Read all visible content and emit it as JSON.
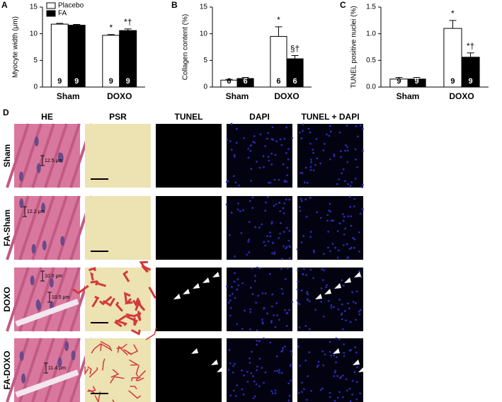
{
  "chart_data": [
    {
      "type": "bar",
      "panel": "A",
      "ylabel": "Myocyte width (μm)",
      "categories": [
        "Sham",
        "DOXO"
      ],
      "ylim": [
        0,
        15
      ],
      "yticks": [
        0,
        5,
        10,
        15
      ],
      "legend": "upper left",
      "series": [
        {
          "name": "Placebo",
          "color": "#ffffff",
          "values": [
            11.8,
            9.7
          ],
          "errors": [
            0.15,
            0.15
          ],
          "n": [
            9,
            9
          ],
          "annotations": [
            null,
            "*"
          ]
        },
        {
          "name": "FA",
          "color": "#000000",
          "values": [
            11.6,
            10.6
          ],
          "errors": [
            0.15,
            0.3
          ],
          "n": [
            9,
            9
          ],
          "annotations": [
            null,
            "*†"
          ]
        }
      ]
    },
    {
      "type": "bar",
      "panel": "B",
      "ylabel": "Collagen content (%)",
      "categories": [
        "Sham",
        "DOXO"
      ],
      "ylim": [
        0,
        15
      ],
      "yticks": [
        0,
        5,
        10,
        15
      ],
      "series": [
        {
          "color": "#ffffff",
          "values": [
            1.3,
            9.5
          ],
          "errors": [
            0.15,
            1.8
          ],
          "n": [
            6,
            6
          ],
          "annotations": [
            null,
            "*"
          ]
        },
        {
          "color": "#000000",
          "values": [
            1.6,
            5.3
          ],
          "errors": [
            0.2,
            0.6
          ],
          "n": [
            6,
            6
          ],
          "annotations": [
            null,
            "§†"
          ]
        }
      ]
    },
    {
      "type": "bar",
      "panel": "C",
      "ylabel": "TUNEL positive nuclei (%)",
      "categories": [
        "Sham",
        "DOXO"
      ],
      "ylim": [
        0,
        1.5
      ],
      "yticks": [
        {
          "value": 0,
          "label": "0.0"
        },
        0.5,
        {
          "value": 1,
          "label": "1.0"
        },
        1.5
      ],
      "series": [
        {
          "color": "#ffffff",
          "values": [
            0.15,
            1.1
          ],
          "errors": [
            0.03,
            0.15
          ],
          "n": [
            9,
            9
          ],
          "annotations": [
            null,
            "*"
          ]
        },
        {
          "color": "#000000",
          "values": [
            0.15,
            0.56
          ],
          "errors": [
            0.03,
            0.08
          ],
          "n": [
            9,
            9
          ],
          "annotations": [
            null,
            "*†"
          ]
        }
      ]
    }
  ],
  "images": {
    "panel": "D",
    "columns": [
      "HE",
      "PSR",
      "TUNEL",
      "DAPI",
      "TUNEL + DAPI"
    ],
    "rows": [
      "Sham",
      "FA-Sham",
      "DOXO",
      "FA-DOXO"
    ],
    "measurements": [
      "12.5 μm",
      "12.2 μm",
      "10.6 μm",
      "10.5 μm",
      "11.4 μm"
    ]
  }
}
